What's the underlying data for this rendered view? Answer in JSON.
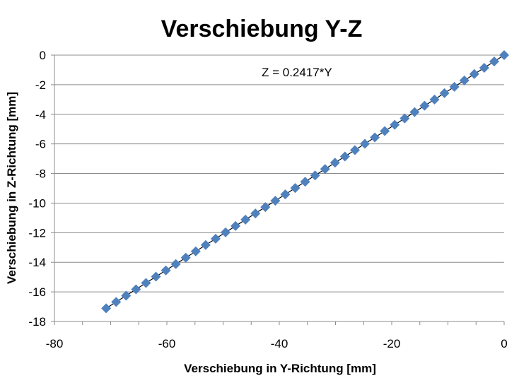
{
  "chart_data": {
    "type": "scatter",
    "title": "Verschiebung Y-Z",
    "xlabel": "Verschiebung in Y-Richtung [mm]",
    "ylabel": "Verschiebung in Z-Richtung [mm]",
    "xlim": [
      -80,
      0
    ],
    "ylim": [
      -18,
      0
    ],
    "xticks": [
      "-80",
      "-60",
      "-40",
      "-20",
      "0"
    ],
    "yticks": [
      "0",
      "-2",
      "-4",
      "-6",
      "-8",
      "-10",
      "-12",
      "-14",
      "-16",
      "-18"
    ],
    "x_tick_values": [
      -80,
      -60,
      -40,
      -20,
      0
    ],
    "y_tick_values": [
      0,
      -2,
      -4,
      -6,
      -8,
      -10,
      -12,
      -14,
      -16,
      -18
    ],
    "grid": "horizontal major gridlines",
    "legend": "none",
    "annotation": "Z = 0.2417*Y",
    "series": [
      {
        "color": "#4F81BD",
        "marker": "diamond",
        "x": [
          0,
          -1.77,
          -3.54,
          -5.31,
          -7.08,
          -8.85,
          -10.62,
          -12.39,
          -14.16,
          -15.93,
          -17.7,
          -19.47,
          -21.24,
          -23.01,
          -24.78,
          -26.55,
          -28.32,
          -30.09,
          -31.86,
          -33.63,
          -35.4,
          -37.17,
          -38.94,
          -40.71,
          -42.48,
          -44.25,
          -46.02,
          -47.79,
          -49.56,
          -51.33,
          -53.1,
          -54.87,
          -56.64,
          -58.41,
          -60.18,
          -61.95,
          -63.72,
          -65.49,
          -67.26,
          -69.03,
          -70.8
        ],
        "y": [
          0,
          -0.43,
          -0.86,
          -1.28,
          -1.71,
          -2.14,
          -2.57,
          -3.0,
          -3.42,
          -3.85,
          -4.28,
          -4.71,
          -5.13,
          -5.56,
          -5.99,
          -6.42,
          -6.85,
          -7.27,
          -7.7,
          -8.13,
          -8.56,
          -8.98,
          -9.41,
          -9.84,
          -10.27,
          -10.7,
          -11.12,
          -11.55,
          -11.98,
          -12.41,
          -12.83,
          -13.26,
          -13.69,
          -14.12,
          -14.55,
          -14.97,
          -15.4,
          -15.83,
          -16.26,
          -16.68,
          -17.11
        ]
      }
    ],
    "trendline": {
      "slope": 0.2417,
      "intercept": 0,
      "x_range": [
        -70.8,
        0
      ],
      "color": "#000000"
    }
  }
}
